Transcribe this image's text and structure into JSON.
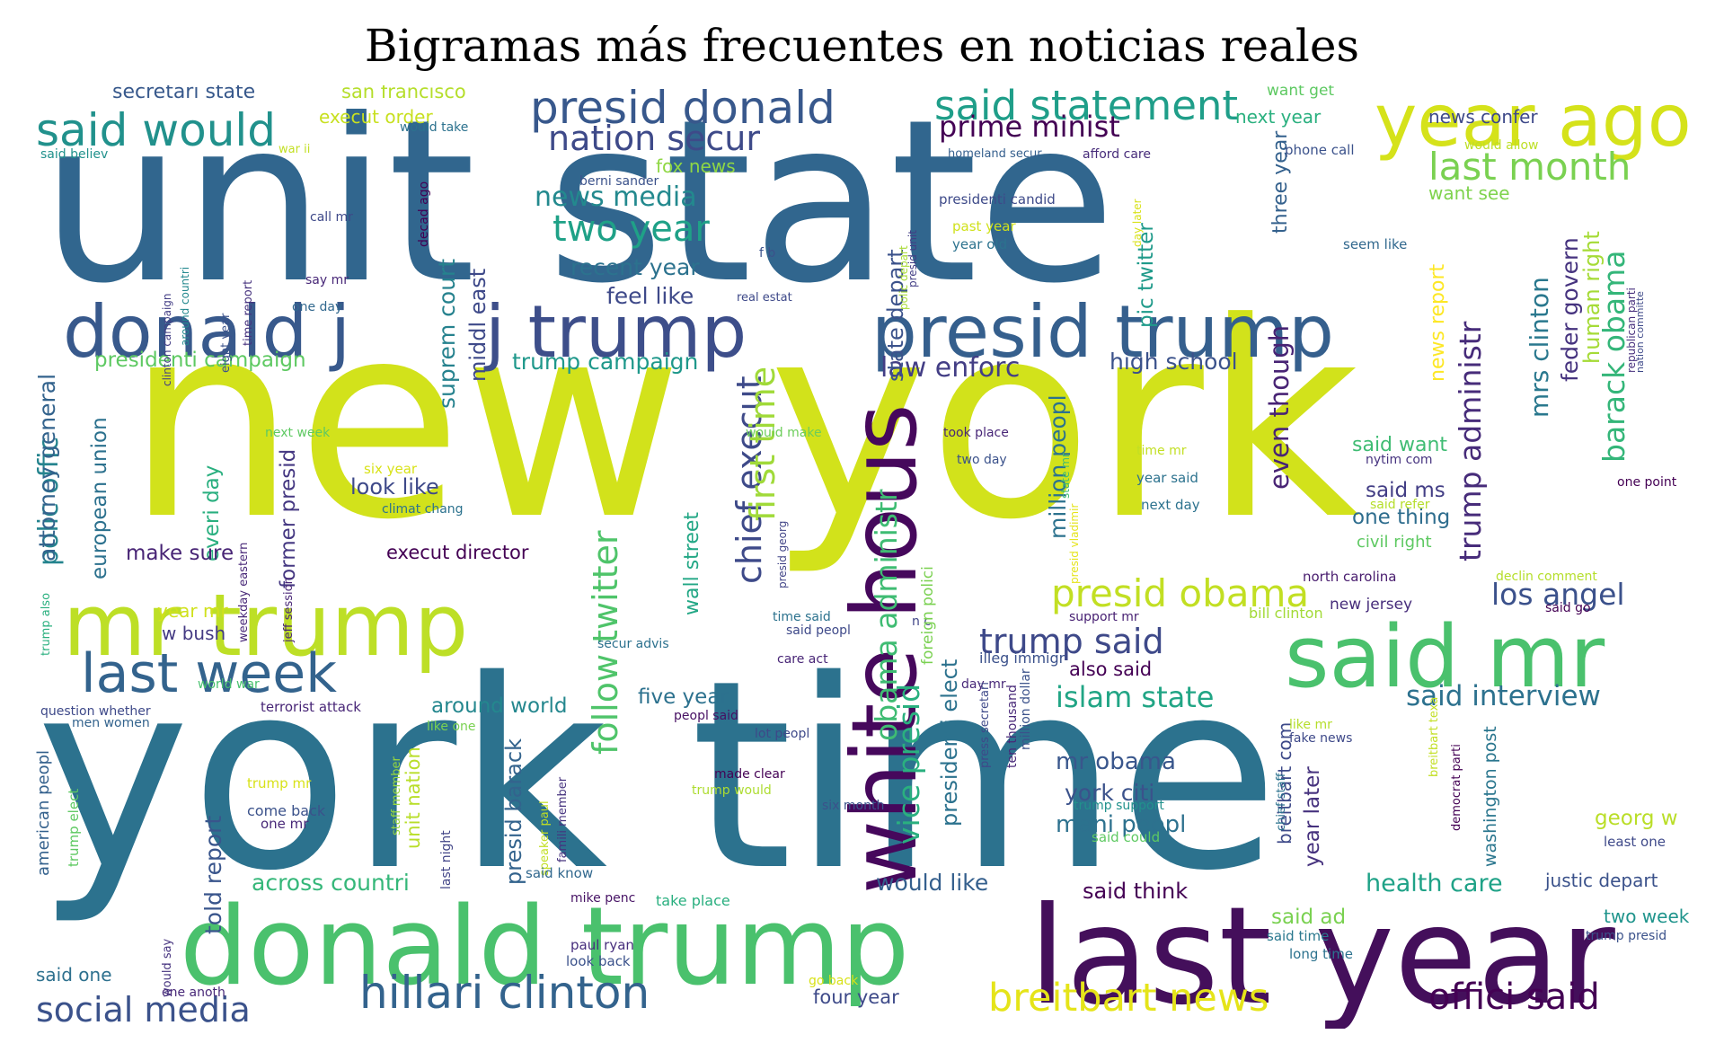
{
  "title": "Bigramas más frecuentes en noticias reales",
  "words": [
    {
      "text": "unit state",
      "color": "#31668e"
    },
    {
      "text": "new york",
      "color": "#d2e21b"
    },
    {
      "text": "york time",
      "color": "#2c728e"
    },
    {
      "text": "donald trump",
      "color": "#4ac16d"
    },
    {
      "text": "last year",
      "color": "#440f5b"
    },
    {
      "text": "white hous",
      "color": "#46085c"
    },
    {
      "text": "mr trump",
      "color": "#bddf26"
    },
    {
      "text": "said mr",
      "color": "#4ac16d"
    },
    {
      "text": "year ago",
      "color": "#d5e21a"
    },
    {
      "text": "presid trump",
      "color": "#355f8d"
    },
    {
      "text": "donald j",
      "color": "#38598c"
    },
    {
      "text": "j trump",
      "color": "#3d4e8a"
    },
    {
      "text": "last week",
      "color": "#33638d"
    },
    {
      "text": "presid donald",
      "color": "#38588c"
    },
    {
      "text": "said would",
      "color": "#21918c"
    },
    {
      "text": "said statement",
      "color": "#1f9e89"
    },
    {
      "text": "hillari clinton",
      "color": "#33638d"
    },
    {
      "text": "breitbart news",
      "color": "#e5e419"
    },
    {
      "text": "offici said",
      "color": "#440154"
    },
    {
      "text": "social media",
      "color": "#3b528b"
    },
    {
      "text": "presid obama",
      "color": "#c2df23"
    },
    {
      "text": "last month",
      "color": "#7ad151"
    },
    {
      "text": "nation secur",
      "color": "#3e4a89"
    },
    {
      "text": "prime minist",
      "color": "#440154"
    },
    {
      "text": "two year",
      "color": "#1fa187"
    },
    {
      "text": "trump said",
      "color": "#3e4989"
    },
    {
      "text": "los angel",
      "color": "#3b518b"
    },
    {
      "text": "said interview",
      "color": "#2c718e"
    },
    {
      "text": "islam state",
      "color": "#21a585"
    },
    {
      "text": "barack obama",
      "color": "#34b679"
    },
    {
      "text": "trump administr",
      "color": "#472c7a"
    },
    {
      "text": "obama administr",
      "color": "#3fbc73"
    },
    {
      "text": "vice presid",
      "color": "#2ab07f"
    },
    {
      "text": "chief execut",
      "color": "#3e4a89"
    },
    {
      "text": "first time",
      "color": "#a0da39"
    },
    {
      "text": "follow twitter",
      "color": "#4fc46a"
    },
    {
      "text": "polic offic",
      "color": "#25848e"
    },
    {
      "text": "law enforc",
      "color": "#433e85"
    },
    {
      "text": "news media",
      "color": "#23898e"
    },
    {
      "text": "recent year",
      "color": "#2c728e"
    },
    {
      "text": "feel like",
      "color": "#3e4989"
    },
    {
      "text": "trump campaign",
      "color": "#1f988b"
    },
    {
      "text": "presidenti campaign",
      "color": "#5ec962"
    },
    {
      "text": "suprem court",
      "color": "#26828e"
    },
    {
      "text": "middl east",
      "color": "#3e4989"
    },
    {
      "text": "high school",
      "color": "#3b528b"
    },
    {
      "text": "pic twitter",
      "color": "#1f9a8a"
    },
    {
      "text": "three year",
      "color": "#34618d"
    },
    {
      "text": "mrs clinton",
      "color": "#2a788e"
    },
    {
      "text": "feder govern",
      "color": "#46337f"
    },
    {
      "text": "human right",
      "color": "#a5db36"
    },
    {
      "text": "news report",
      "color": "#fde725"
    },
    {
      "text": "even though",
      "color": "#482374"
    },
    {
      "text": "said want",
      "color": "#3fbc73"
    },
    {
      "text": "said ms",
      "color": "#433e85"
    },
    {
      "text": "one thing",
      "color": "#2e6d8e"
    },
    {
      "text": "civil right",
      "color": "#5ec962"
    },
    {
      "text": "attorney general",
      "color": "#33638d"
    },
    {
      "text": "european union",
      "color": "#2c718e"
    },
    {
      "text": "former presid",
      "color": "#453882"
    },
    {
      "text": "everi day",
      "color": "#29af7f"
    },
    {
      "text": "look like",
      "color": "#3e4989"
    },
    {
      "text": "make sure",
      "color": "#482475"
    },
    {
      "text": "execut director",
      "color": "#440154"
    },
    {
      "text": "wall street",
      "color": "#22a785"
    },
    {
      "text": "million peopl",
      "color": "#2c728e"
    },
    {
      "text": "presidenti elect",
      "color": "#2c728e"
    },
    {
      "text": "mr obama",
      "color": "#39568c"
    },
    {
      "text": "york citi",
      "color": "#3b528b"
    },
    {
      "text": "mani peopl",
      "color": "#2d718e"
    },
    {
      "text": "would like",
      "color": "#345f8d"
    },
    {
      "text": "said think",
      "color": "#440154"
    },
    {
      "text": "health care",
      "color": "#1fa287"
    },
    {
      "text": "justic depart",
      "color": "#3b528b"
    },
    {
      "text": "georg w",
      "color": "#bade28"
    },
    {
      "text": "two week",
      "color": "#1f948c"
    },
    {
      "text": "said ad",
      "color": "#7ad151"
    },
    {
      "text": "year later",
      "color": "#46327e"
    },
    {
      "text": "breitbart com",
      "color": "#3e4a89"
    },
    {
      "text": "washington post",
      "color": "#2a768e"
    },
    {
      "text": "across countri",
      "color": "#35b779"
    },
    {
      "text": "told report",
      "color": "#39558c"
    },
    {
      "text": "unit nation",
      "color": "#b8de29"
    },
    {
      "text": "presid barack",
      "color": "#33638d"
    },
    {
      "text": "four year",
      "color": "#3e4a89"
    },
    {
      "text": "around world",
      "color": "#24878e"
    },
    {
      "text": "five year",
      "color": "#2c718e"
    },
    {
      "text": "also said",
      "color": "#440154"
    },
    {
      "text": "secretari state",
      "color": "#38598c"
    },
    {
      "text": "san francisco",
      "color": "#b5de2b"
    },
    {
      "text": "execut order",
      "color": "#c8e020"
    },
    {
      "text": "fox news",
      "color": "#8fd744"
    },
    {
      "text": "next year",
      "color": "#2ab07f"
    },
    {
      "text": "news confer",
      "color": "#3e4989"
    },
    {
      "text": "want see",
      "color": "#7fd34e"
    },
    {
      "text": "want get",
      "color": "#5ec962"
    },
    {
      "text": "state depart",
      "color": "#3b528b"
    },
    {
      "text": "w bush",
      "color": "#443a83"
    },
    {
      "text": "year mr",
      "color": "#d0e11c"
    },
    {
      "text": "new jersey",
      "color": "#472d7b"
    },
    {
      "text": "north carolina",
      "color": "#481c6e"
    },
    {
      "text": "bill clinton",
      "color": "#a2da37"
    },
    {
      "text": "declin comment",
      "color": "#b5de2b"
    },
    {
      "text": "support mr",
      "color": "#482173"
    },
    {
      "text": "illeg immigr",
      "color": "#3b518b"
    },
    {
      "text": "world war",
      "color": "#48c16e"
    },
    {
      "text": "terrorist attack",
      "color": "#482677"
    },
    {
      "text": "question whether",
      "color": "#3e4989"
    },
    {
      "text": "men women",
      "color": "#33638d"
    },
    {
      "text": "american peopl",
      "color": "#34618d"
    },
    {
      "text": "trump elect",
      "color": "#5ec962"
    },
    {
      "text": "said one",
      "color": "#2d708e"
    },
    {
      "text": "one anoth",
      "color": "#482878"
    },
    {
      "text": "would say",
      "color": "#46337f"
    },
    {
      "text": "trump mr",
      "color": "#d8e219"
    },
    {
      "text": "come back",
      "color": "#3b528b"
    },
    {
      "text": "one mr",
      "color": "#482878"
    },
    {
      "text": "staff member",
      "color": "#98d83e"
    },
    {
      "text": "last night",
      "color": "#414487"
    },
    {
      "text": "speaker paul",
      "color": "#c2df23"
    },
    {
      "text": "famili member",
      "color": "#46337f"
    },
    {
      "text": "said know",
      "color": "#31688e"
    },
    {
      "text": "mike penc",
      "color": "#471365"
    },
    {
      "text": "take place",
      "color": "#29af7f"
    },
    {
      "text": "paul ryan",
      "color": "#472f7d"
    },
    {
      "text": "look back",
      "color": "#3b528b"
    },
    {
      "text": "go back",
      "color": "#d8e219"
    },
    {
      "text": "made clear",
      "color": "#440154"
    },
    {
      "text": "trump would",
      "color": "#addc30"
    },
    {
      "text": "six month",
      "color": "#3b528b"
    },
    {
      "text": "lot peopl",
      "color": "#3e4989"
    },
    {
      "text": "peopl said",
      "color": "#471063"
    },
    {
      "text": "like one",
      "color": "#7ad151"
    },
    {
      "text": "time said",
      "color": "#2c728e"
    },
    {
      "text": "said peopl",
      "color": "#3e4989"
    },
    {
      "text": "care act",
      "color": "#482576"
    },
    {
      "text": "secur advis",
      "color": "#2c718e"
    },
    {
      "text": "n c",
      "color": "#404588"
    },
    {
      "text": "foreign polici",
      "color": "#7ad151"
    },
    {
      "text": "presid georg",
      "color": "#414487"
    },
    {
      "text": "took place",
      "color": "#482677"
    },
    {
      "text": "two day",
      "color": "#3b528b"
    },
    {
      "text": "would make",
      "color": "#6ccd5a"
    },
    {
      "text": "next week",
      "color": "#5ec962"
    },
    {
      "text": "six year",
      "color": "#d8e219"
    },
    {
      "text": "weekday eastern",
      "color": "#482878"
    },
    {
      "text": "jeff session",
      "color": "#482576"
    },
    {
      "text": "climat chang",
      "color": "#2c728e"
    },
    {
      "text": "say mr",
      "color": "#482878"
    },
    {
      "text": "call mr",
      "color": "#3e4989"
    },
    {
      "text": "one day",
      "color": "#31688e"
    },
    {
      "text": "time report",
      "color": "#46327e"
    },
    {
      "text": "eight year",
      "color": "#3b528b"
    },
    {
      "text": "clinton campaign",
      "color": "#433e85"
    },
    {
      "text": "around countri",
      "color": "#23888e"
    },
    {
      "text": "said believ",
      "color": "#21918c"
    },
    {
      "text": "war ii",
      "color": "#c2df23"
    },
    {
      "text": "would take",
      "color": "#2c728e"
    },
    {
      "text": "decad ago",
      "color": "#440154"
    },
    {
      "text": "berni sander",
      "color": "#3b528b"
    },
    {
      "text": "f b",
      "color": "#3b528b"
    },
    {
      "text": "real estat",
      "color": "#3e4989"
    },
    {
      "text": "polic depart",
      "color": "#a8db34"
    },
    {
      "text": "presid unit",
      "color": "#433e85"
    },
    {
      "text": "homeland secur",
      "color": "#355f8d"
    },
    {
      "text": "afford care",
      "color": "#472c7a"
    },
    {
      "text": "phone call",
      "color": "#3b528b"
    },
    {
      "text": "would allow",
      "color": "#bddf26"
    },
    {
      "text": "presidenti candid",
      "color": "#3e4a89"
    },
    {
      "text": "past year",
      "color": "#d0e11c"
    },
    {
      "text": "year old",
      "color": "#2c728e"
    },
    {
      "text": "day later",
      "color": "#d8e219"
    },
    {
      "text": "seem like",
      "color": "#31688e"
    },
    {
      "text": "republican parti",
      "color": "#472f7d"
    },
    {
      "text": "nation committe",
      "color": "#3e4989"
    },
    {
      "text": "one point",
      "color": "#440154"
    },
    {
      "text": "time mr",
      "color": "#c2df23"
    },
    {
      "text": "year said",
      "color": "#2c728e"
    },
    {
      "text": "next day",
      "color": "#2c728e"
    },
    {
      "text": "nytim com",
      "color": "#46337f"
    },
    {
      "text": "said refer",
      "color": "#b5de2b"
    },
    {
      "text": "presid vladimir",
      "color": "#e5e419"
    },
    {
      "text": "state mr",
      "color": "#3fbc73"
    },
    {
      "text": "said go",
      "color": "#440154"
    },
    {
      "text": "day mr",
      "color": "#482878"
    },
    {
      "text": "press secretari",
      "color": "#3e4989"
    },
    {
      "text": "ten thousand",
      "color": "#482878"
    },
    {
      "text": "million dollar",
      "color": "#3b528b"
    },
    {
      "text": "trump support",
      "color": "#21918c"
    },
    {
      "text": "said could",
      "color": "#5ec962"
    },
    {
      "text": "like mr",
      "color": "#b5de2b"
    },
    {
      "text": "fake news",
      "color": "#3e4989"
    },
    {
      "text": "chief staff",
      "color": "#2c728e"
    },
    {
      "text": "breitbart texa",
      "color": "#c2df23"
    },
    {
      "text": "democrat parti",
      "color": "#440154"
    },
    {
      "text": "least one",
      "color": "#3e4989"
    },
    {
      "text": "said time",
      "color": "#2a788e"
    },
    {
      "text": "long time",
      "color": "#2c728e"
    },
    {
      "text": "trump presid",
      "color": "#3b528b"
    },
    {
      "text": "trump also",
      "color": "#2ab07f"
    }
  ]
}
